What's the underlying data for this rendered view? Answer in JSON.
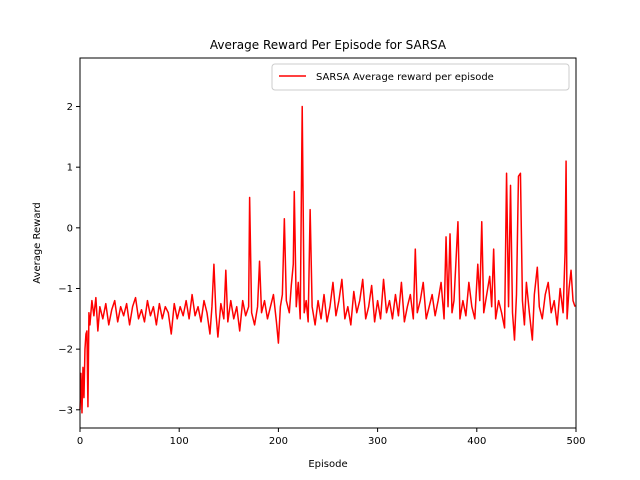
{
  "chart_data": {
    "type": "line",
    "title": "Average Reward Per Episode for SARSA",
    "xlabel": "Episode",
    "ylabel": "Average Reward",
    "xlim": [
      0,
      500
    ],
    "ylim": [
      -3.3,
      2.8
    ],
    "xticks": [
      0,
      100,
      200,
      300,
      400,
      500
    ],
    "yticks": [
      -3,
      -2,
      -1,
      0,
      1,
      2
    ],
    "grid": false,
    "legend_position": "upper right",
    "series": [
      {
        "name": "SARSA Average reward per episode",
        "color": "#ff0000",
        "points": [
          [
            0,
            -3.0
          ],
          [
            1,
            -2.4
          ],
          [
            2,
            -3.05
          ],
          [
            3,
            -2.3
          ],
          [
            4,
            -2.8
          ],
          [
            5,
            -2.0
          ],
          [
            6,
            -1.75
          ],
          [
            7,
            -1.7
          ],
          [
            8,
            -2.95
          ],
          [
            9,
            -1.4
          ],
          [
            10,
            -1.6
          ],
          [
            12,
            -1.2
          ],
          [
            14,
            -1.45
          ],
          [
            16,
            -1.15
          ],
          [
            18,
            -1.7
          ],
          [
            20,
            -1.3
          ],
          [
            23,
            -1.5
          ],
          [
            26,
            -1.25
          ],
          [
            29,
            -1.6
          ],
          [
            32,
            -1.35
          ],
          [
            35,
            -1.2
          ],
          [
            38,
            -1.55
          ],
          [
            41,
            -1.3
          ],
          [
            44,
            -1.45
          ],
          [
            47,
            -1.25
          ],
          [
            50,
            -1.6
          ],
          [
            53,
            -1.3
          ],
          [
            56,
            -1.15
          ],
          [
            59,
            -1.5
          ],
          [
            62,
            -1.35
          ],
          [
            65,
            -1.55
          ],
          [
            68,
            -1.2
          ],
          [
            71,
            -1.45
          ],
          [
            74,
            -1.3
          ],
          [
            77,
            -1.6
          ],
          [
            80,
            -1.25
          ],
          [
            83,
            -1.5
          ],
          [
            86,
            -1.3
          ],
          [
            89,
            -1.4
          ],
          [
            92,
            -1.75
          ],
          [
            95,
            -1.25
          ],
          [
            98,
            -1.5
          ],
          [
            101,
            -1.3
          ],
          [
            104,
            -1.45
          ],
          [
            107,
            -1.2
          ],
          [
            110,
            -1.5
          ],
          [
            113,
            -1.1
          ],
          [
            116,
            -1.45
          ],
          [
            119,
            -1.3
          ],
          [
            122,
            -1.55
          ],
          [
            125,
            -1.2
          ],
          [
            128,
            -1.4
          ],
          [
            131,
            -1.75
          ],
          [
            133,
            -1.3
          ],
          [
            135,
            -0.6
          ],
          [
            137,
            -1.4
          ],
          [
            139,
            -1.8
          ],
          [
            142,
            -1.25
          ],
          [
            145,
            -1.5
          ],
          [
            147,
            -0.7
          ],
          [
            149,
            -1.55
          ],
          [
            152,
            -1.2
          ],
          [
            155,
            -1.5
          ],
          [
            158,
            -1.3
          ],
          [
            161,
            -1.7
          ],
          [
            164,
            -1.2
          ],
          [
            167,
            -1.45
          ],
          [
            170,
            -1.3
          ],
          [
            171,
            0.5
          ],
          [
            173,
            -1.4
          ],
          [
            176,
            -1.6
          ],
          [
            179,
            -1.3
          ],
          [
            181,
            -0.55
          ],
          [
            183,
            -1.4
          ],
          [
            186,
            -1.2
          ],
          [
            189,
            -1.5
          ],
          [
            192,
            -1.3
          ],
          [
            195,
            -1.1
          ],
          [
            198,
            -1.55
          ],
          [
            200,
            -1.9
          ],
          [
            202,
            -1.3
          ],
          [
            204,
            -1.1
          ],
          [
            206,
            0.15
          ],
          [
            208,
            -1.2
          ],
          [
            211,
            -1.4
          ],
          [
            213,
            -0.95
          ],
          [
            215,
            -0.6
          ],
          [
            216,
            0.6
          ],
          [
            218,
            -1.3
          ],
          [
            220,
            -0.9
          ],
          [
            222,
            -1.5
          ],
          [
            224,
            2.0
          ],
          [
            226,
            -1.4
          ],
          [
            228,
            -1.2
          ],
          [
            230,
            -1.55
          ],
          [
            232,
            0.3
          ],
          [
            234,
            -1.3
          ],
          [
            237,
            -1.6
          ],
          [
            240,
            -1.2
          ],
          [
            243,
            -1.5
          ],
          [
            246,
            -1.1
          ],
          [
            249,
            -1.55
          ],
          [
            252,
            -1.3
          ],
          [
            255,
            -0.9
          ],
          [
            258,
            -1.45
          ],
          [
            261,
            -1.2
          ],
          [
            264,
            -0.85
          ],
          [
            267,
            -1.5
          ],
          [
            270,
            -1.3
          ],
          [
            273,
            -1.6
          ],
          [
            276,
            -1.05
          ],
          [
            279,
            -1.4
          ],
          [
            282,
            -1.2
          ],
          [
            285,
            -0.85
          ],
          [
            288,
            -1.5
          ],
          [
            291,
            -1.3
          ],
          [
            294,
            -0.95
          ],
          [
            297,
            -1.55
          ],
          [
            300,
            -1.2
          ],
          [
            303,
            -1.5
          ],
          [
            306,
            -0.85
          ],
          [
            309,
            -1.4
          ],
          [
            312,
            -1.2
          ],
          [
            315,
            -1.5
          ],
          [
            318,
            -1.1
          ],
          [
            321,
            -1.45
          ],
          [
            324,
            -0.9
          ],
          [
            327,
            -1.55
          ],
          [
            330,
            -1.3
          ],
          [
            333,
            -1.1
          ],
          [
            336,
            -1.5
          ],
          [
            338,
            -0.35
          ],
          [
            340,
            -1.4
          ],
          [
            343,
            -1.2
          ],
          [
            346,
            -0.9
          ],
          [
            349,
            -1.5
          ],
          [
            352,
            -1.3
          ],
          [
            355,
            -1.1
          ],
          [
            358,
            -1.45
          ],
          [
            361,
            -1.2
          ],
          [
            364,
            -0.9
          ],
          [
            367,
            -1.5
          ],
          [
            369,
            -0.15
          ],
          [
            371,
            -1.3
          ],
          [
            373,
            -0.1
          ],
          [
            375,
            -1.4
          ],
          [
            377,
            -1.2
          ],
          [
            379,
            -0.55
          ],
          [
            381,
            0.1
          ],
          [
            383,
            -1.5
          ],
          [
            386,
            -1.2
          ],
          [
            389,
            -1.45
          ],
          [
            392,
            -0.9
          ],
          [
            395,
            -1.3
          ],
          [
            398,
            -1.5
          ],
          [
            401,
            -0.6
          ],
          [
            403,
            -1.2
          ],
          [
            405,
            0.1
          ],
          [
            407,
            -1.4
          ],
          [
            410,
            -1.1
          ],
          [
            413,
            -0.8
          ],
          [
            415,
            -1.3
          ],
          [
            417,
            -0.35
          ],
          [
            419,
            -1.5
          ],
          [
            422,
            -1.2
          ],
          [
            425,
            -1.4
          ],
          [
            428,
            -1.65
          ],
          [
            430,
            0.9
          ],
          [
            432,
            -1.3
          ],
          [
            434,
            0.7
          ],
          [
            436,
            -1.4
          ],
          [
            438,
            -1.85
          ],
          [
            440,
            -1.1
          ],
          [
            442,
            0.85
          ],
          [
            444,
            0.9
          ],
          [
            446,
            -1.2
          ],
          [
            448,
            -1.6
          ],
          [
            450,
            -0.9
          ],
          [
            453,
            -1.4
          ],
          [
            456,
            -1.85
          ],
          [
            458,
            -1.1
          ],
          [
            461,
            -0.65
          ],
          [
            463,
            -1.3
          ],
          [
            466,
            -1.5
          ],
          [
            469,
            -1.1
          ],
          [
            472,
            -0.9
          ],
          [
            475,
            -1.4
          ],
          [
            478,
            -1.2
          ],
          [
            481,
            -1.6
          ],
          [
            484,
            -1.0
          ],
          [
            487,
            -1.4
          ],
          [
            489,
            -0.4
          ],
          [
            490,
            1.1
          ],
          [
            491,
            -1.5
          ],
          [
            493,
            -1.0
          ],
          [
            495,
            -0.7
          ],
          [
            497,
            -1.2
          ],
          [
            499,
            -1.3
          ]
        ]
      }
    ]
  }
}
